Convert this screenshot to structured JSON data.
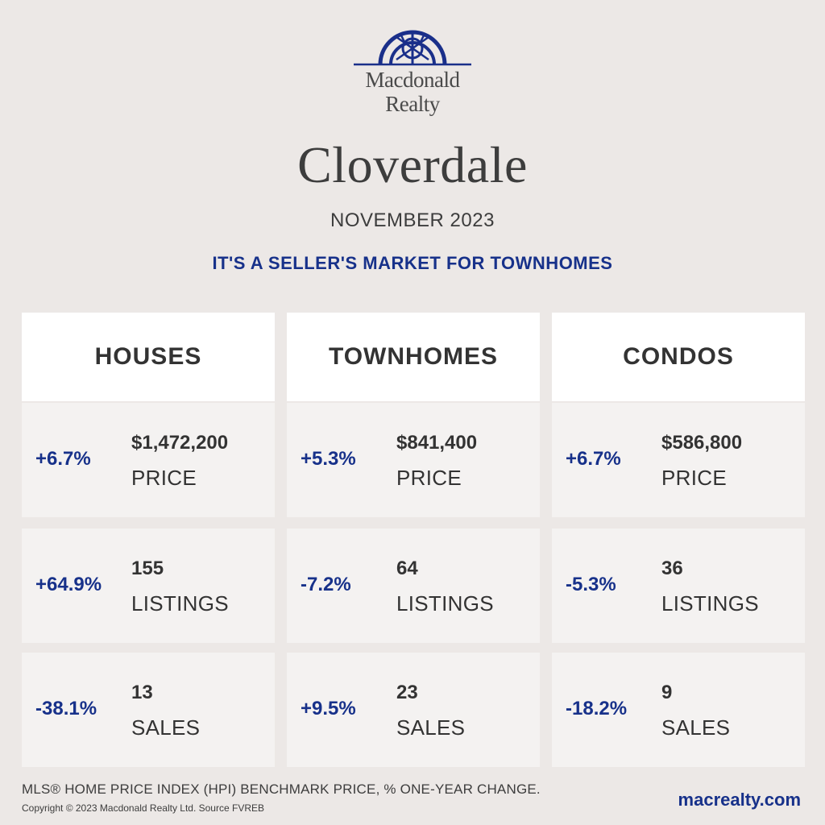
{
  "brand": {
    "logo_line1": "Macdonald",
    "logo_line2": "Realty",
    "color": "#1a2f8a"
  },
  "town": "Cloverdale",
  "period": "NOVEMBER 2023",
  "headline": "IT'S A SELLER'S MARKET FOR TOWNHOMES",
  "columns": [
    {
      "title": "HOUSES",
      "price": {
        "change": "+6.7%",
        "value": "$1,472,200",
        "label": "PRICE"
      },
      "listings": {
        "change": "+64.9%",
        "value": "155",
        "label": "LISTINGS"
      },
      "sales": {
        "change": "-38.1%",
        "value": "13",
        "label": "SALES"
      }
    },
    {
      "title": "TOWNHOMES",
      "price": {
        "change": "+5.3%",
        "value": "$841,400",
        "label": "PRICE"
      },
      "listings": {
        "change": "-7.2%",
        "value": "64",
        "label": "LISTINGS"
      },
      "sales": {
        "change": "+9.5%",
        "value": "23",
        "label": "SALES"
      }
    },
    {
      "title": "CONDOS",
      "price": {
        "change": "+6.7%",
        "value": "$586,800",
        "label": "PRICE"
      },
      "listings": {
        "change": "-5.3%",
        "value": "36",
        "label": "LISTINGS"
      },
      "sales": {
        "change": "-18.2%",
        "value": "9",
        "label": "SALES"
      }
    }
  ],
  "footer": {
    "note": "MLS® HOME PRICE INDEX (HPI) BENCHMARK PRICE, % ONE-YEAR CHANGE.",
    "copyright": "Copyright © 2023 Macdonald Realty Ltd. Source FVREB",
    "website": "macrealty.com"
  },
  "colors": {
    "accent": "#17318a",
    "background": "#ece8e6",
    "card": "#f4f2f1",
    "header_card": "#ffffff"
  }
}
